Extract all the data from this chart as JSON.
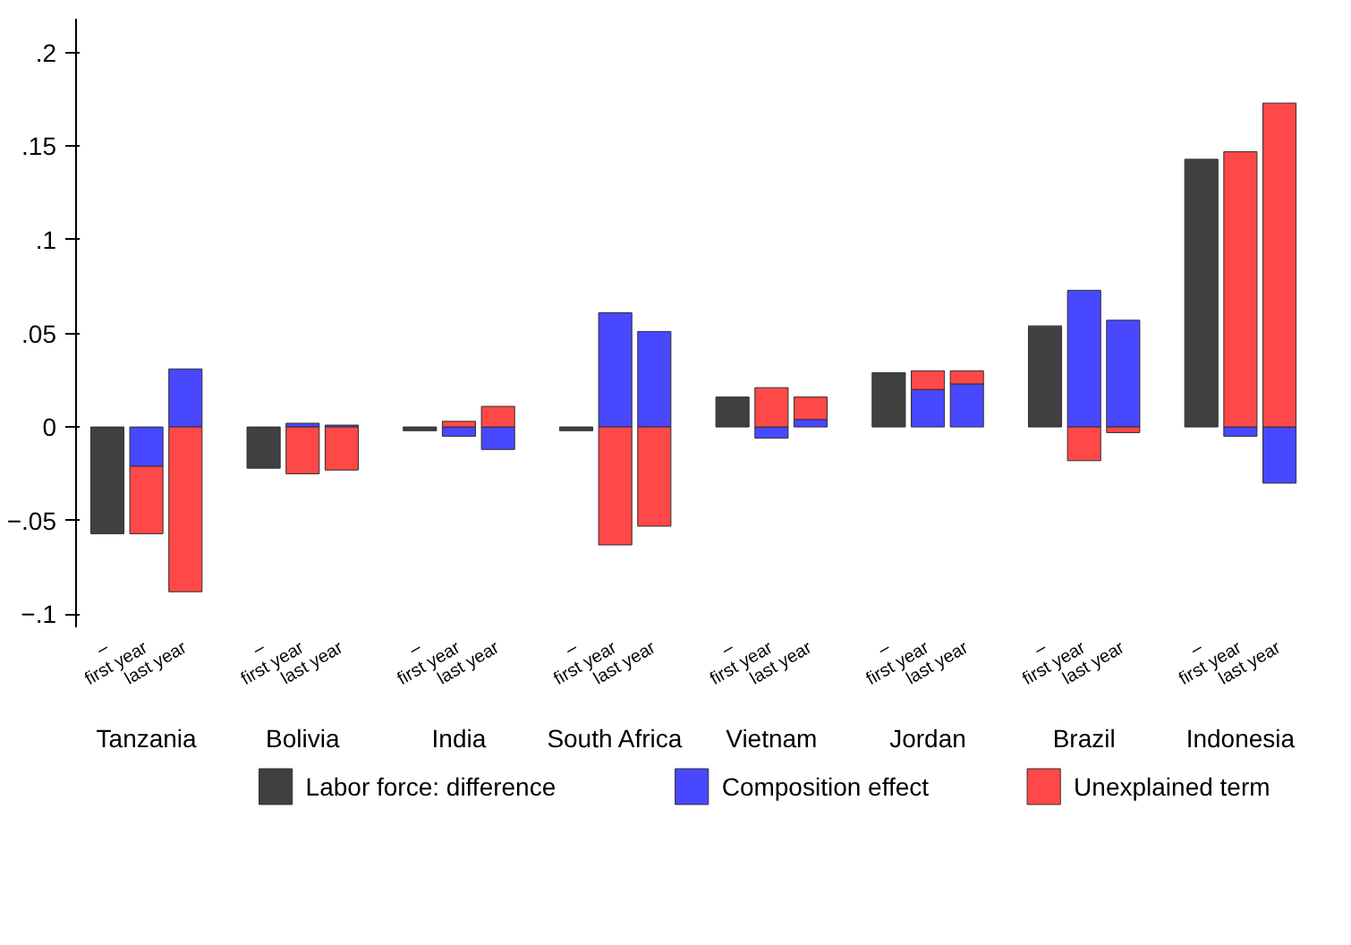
{
  "chart_data": {
    "type": "bar",
    "stacked": true,
    "categories": [
      "–",
      "first year",
      "last year",
      "–",
      "first year",
      "last year",
      "–",
      "first year",
      "last year",
      "–",
      "first year",
      "last year",
      "–",
      "first year",
      "last year",
      "–",
      "first year",
      "last year",
      "–",
      "first year",
      "last year",
      "–",
      "first year",
      "last year"
    ],
    "annotations": [
      "Tanzania",
      "Bolivia",
      "India",
      "South Africa",
      "Vietnam",
      "Jordan",
      "Brazil",
      "Indonesia"
    ],
    "series": [
      {
        "name": "Labor force: difference",
        "color": "#404040",
        "values": [
          -0.057,
          null,
          null,
          -0.022,
          null,
          null,
          -0.002,
          null,
          null,
          -0.002,
          null,
          null,
          0.016,
          null,
          null,
          0.029,
          null,
          null,
          0.054,
          null,
          null,
          0.143,
          null,
          null
        ]
      },
      {
        "name": "Composition effect",
        "color": "#4848ff",
        "values": [
          null,
          -0.021,
          0.031,
          null,
          0.002,
          0.001,
          null,
          -0.005,
          -0.012,
          null,
          0.061,
          0.051,
          null,
          -0.006,
          0.004,
          null,
          0.02,
          0.023,
          null,
          0.073,
          0.057,
          null,
          -0.005,
          -0.03
        ]
      },
      {
        "name": "Unexplained term",
        "color": "#ff4848",
        "values": [
          null,
          -0.036,
          -0.088,
          null,
          -0.025,
          -0.023,
          null,
          0.003,
          0.011,
          null,
          -0.063,
          -0.053,
          null,
          0.021,
          0.012,
          null,
          0.01,
          0.007,
          null,
          -0.018,
          -0.003,
          null,
          0.147,
          0.173
        ]
      }
    ],
    "ylim": [
      -0.107,
      0.218
    ],
    "yticks": [
      {
        "value": -0.1,
        "label": "−.1"
      },
      {
        "value": -0.05,
        "label": "−.05"
      },
      {
        "value": 0,
        "label": "0"
      },
      {
        "value": 0.05,
        "label": ".05"
      },
      {
        "value": 0.1,
        "label": ".1"
      },
      {
        "value": 0.15,
        "label": ".15"
      },
      {
        "value": 0.2,
        "label": ".2"
      }
    ],
    "grid": false,
    "legend": "bottom"
  }
}
